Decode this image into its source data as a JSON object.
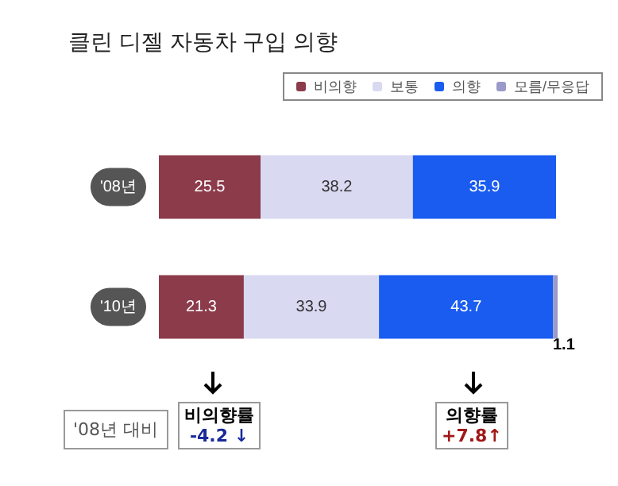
{
  "chart_data": {
    "type": "bar",
    "orientation": "horizontal",
    "stacked": true,
    "title": "클린 디젤 자동차 구입 의향",
    "categories": [
      "'08년",
      "'10년"
    ],
    "series": [
      {
        "name": "비의향",
        "color": "#8c3b4b",
        "values": [
          25.5,
          21.3
        ]
      },
      {
        "name": "보통",
        "color": "#d9d9f2",
        "values": [
          38.2,
          33.9
        ]
      },
      {
        "name": "의향",
        "color": "#1a5cf0",
        "values": [
          35.9,
          43.7
        ]
      },
      {
        "name": "모름/무응답",
        "color": "#9a9ac8",
        "values": [
          null,
          1.1
        ]
      }
    ],
    "data_labels": true,
    "xlim": [
      0,
      100
    ],
    "tick_labels": "y",
    "legend": "top right",
    "annotations": [
      "'08년 대비",
      "비의향률\n-4.2 ↓",
      "의향률\n+7.8↑"
    ]
  }
}
